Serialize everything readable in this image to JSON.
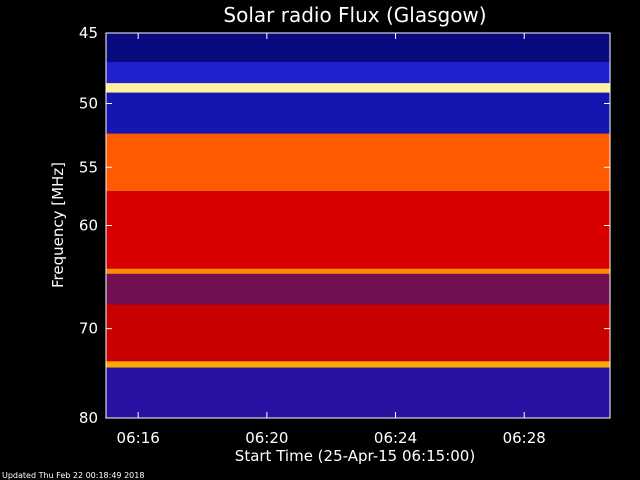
{
  "chart_data": {
    "type": "heatmap",
    "title": "Solar radio Flux (Glasgow)",
    "xlabel": "Start Time (25-Apr-15 06:15:00)",
    "ylabel": "Frequency [MHz]",
    "x_range": [
      "06:15:00",
      "06:30:40"
    ],
    "y_range_mhz": [
      45,
      80
    ],
    "y_scale": "log",
    "x_ticks": [
      "06:16",
      "06:20",
      "06:24",
      "06:28"
    ],
    "y_ticks": [
      45,
      50,
      55,
      60,
      70,
      80
    ],
    "colormap": "dark-blue / blue / red / orange / yellow / white",
    "colors": {
      "background": "#000000",
      "low": "#10109a",
      "mid": "#d00000",
      "high": "#ffff60"
    },
    "bands": [
      {
        "from_mhz": 45.0,
        "to_mhz": 47.0,
        "level": "low",
        "color": "#0a0a80"
      },
      {
        "from_mhz": 47.0,
        "to_mhz": 48.5,
        "level": "low-mid",
        "color": "#2020d0"
      },
      {
        "from_mhz": 48.5,
        "to_mhz": 49.2,
        "level": "very high",
        "color": "#fff0a0"
      },
      {
        "from_mhz": 49.2,
        "to_mhz": 52.3,
        "level": "low",
        "color": "#1515b0"
      },
      {
        "from_mhz": 52.3,
        "to_mhz": 57.0,
        "level": "high",
        "color": "#ff5a00"
      },
      {
        "from_mhz": 57.0,
        "to_mhz": 64.0,
        "level": "mid",
        "color": "#d80000"
      },
      {
        "from_mhz": 64.0,
        "to_mhz": 64.5,
        "level": "high",
        "color": "#ff8c00"
      },
      {
        "from_mhz": 64.5,
        "to_mhz": 67.5,
        "level": "low-mid",
        "color": "#701050"
      },
      {
        "from_mhz": 67.5,
        "to_mhz": 73.5,
        "level": "mid",
        "color": "#c80000"
      },
      {
        "from_mhz": 73.5,
        "to_mhz": 74.2,
        "level": "high",
        "color": "#ffaa00"
      },
      {
        "from_mhz": 74.2,
        "to_mhz": 80.0,
        "level": "low",
        "color": "#2a10a0"
      }
    ]
  },
  "footer": {
    "updated": "Updated Thu Feb 22 00:18:49 2018"
  }
}
